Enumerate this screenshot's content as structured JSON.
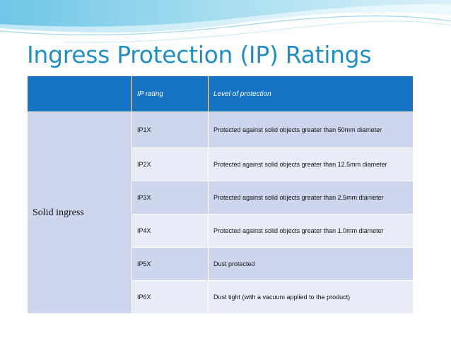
{
  "slide": {
    "title": "Ingress Protection (IP) Ratings"
  },
  "table": {
    "headers": [
      "",
      "IP rating",
      "Level of protection"
    ],
    "category": "Solid ingress",
    "rows": [
      {
        "rating": "IP1X",
        "protection": "Protected against solid objects greater than 50mm diameter"
      },
      {
        "rating": "IP2X",
        "protection": "Protected against solid objects greater than 12.5mm diameter"
      },
      {
        "rating": "IP3X",
        "protection": "Protected against solid objects greater than 2.5mm diameter"
      },
      {
        "rating": "IP4X",
        "protection": "Protected against solid objects greater than 1.0mm diameter"
      },
      {
        "rating": "IP5X",
        "protection": "Dust protected"
      },
      {
        "rating": "IP6X",
        "protection": "Dust tight (with a vacuum applied to the product)"
      }
    ]
  },
  "colors": {
    "title": "#1f8fc6",
    "header_fill": "#1673c4",
    "row_dark": "#cdd6ec",
    "row_light": "#e8ecf6"
  }
}
